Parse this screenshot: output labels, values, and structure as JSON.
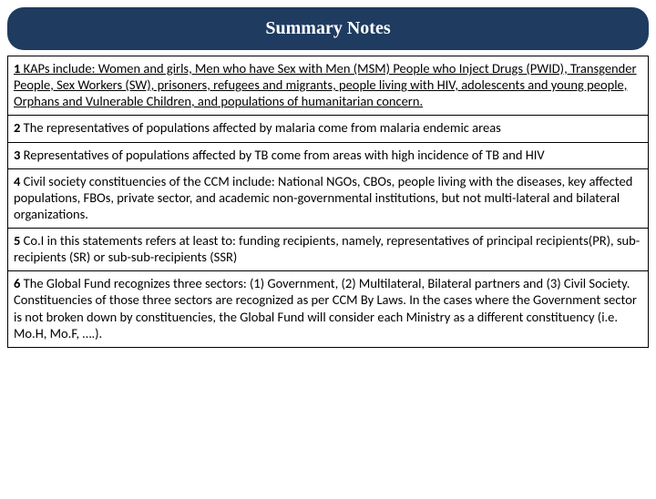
{
  "header": {
    "title": "Summary Notes"
  },
  "notes": [
    {
      "num": "1",
      "text": " KAPs include: Women and girls, Men who have Sex with Men (MSM) People who Inject Drugs (PWID), Transgender People, Sex Workers (SW), prisoners, refugees and migrants, people living with HIV, adolescents and young people, Orphans and Vulnerable Children, and populations of humanitarian concern.",
      "underline": true
    },
    {
      "num": "2",
      "text": " The representatives of populations affected by malaria come from malaria endemic areas",
      "underline": false
    },
    {
      "num": "3",
      "text": " Representatives of populations affected by TB come from areas with high incidence of TB and HIV",
      "underline": false
    },
    {
      "num": "4",
      "text": " Civil society constituencies of the CCM include: National NGOs, CBOs, people living with the diseases, key affected populations, FBOs, private sector, and academic non-governmental institutions, but not multi-lateral and bilateral organizations.",
      "underline": false
    },
    {
      "num": "5",
      "text": " Co.I in this statements refers at least to: funding recipients, namely, representatives of principal recipients(PR), sub-recipients (SR) or sub-sub-recipients (SSR)",
      "underline": false
    },
    {
      "num": "6",
      "text": " The Global Fund recognizes three sectors: (1) Government, (2) Multilateral, Bilateral partners and (3) Civil Society.\nConstituencies of those three sectors are recognized as per CCM By Laws. In the cases where the Government sector is not broken down by constituencies, the Global Fund will consider each Ministry as a different constituency (i.e. Mo.H, Mo.F, ….).",
      "underline": false
    }
  ]
}
